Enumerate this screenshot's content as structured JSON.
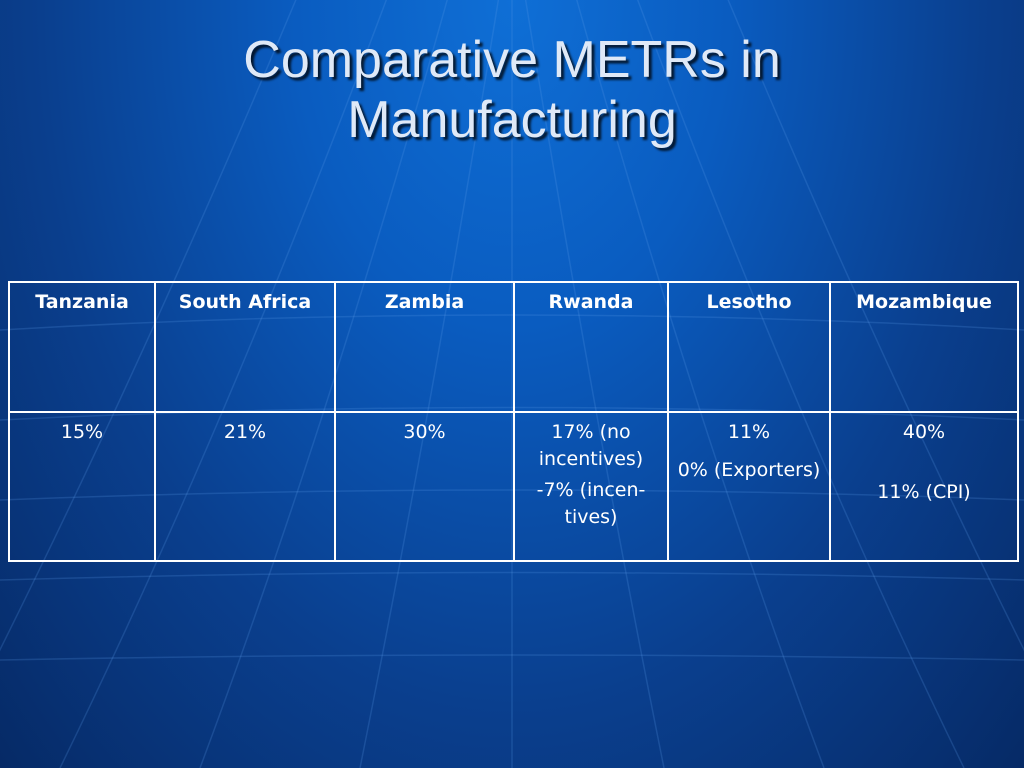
{
  "slide": {
    "title_lines": [
      "Comparative METRs in",
      "Manufacturing"
    ]
  },
  "table": {
    "headers": [
      "Tanzania",
      "South Africa",
      "Zambia",
      "Rwanda",
      "Lesotho",
      "Mozambique"
    ],
    "row": {
      "tanzania": [
        "15%"
      ],
      "south_africa": [
        "21%"
      ],
      "zambia": [
        "30%"
      ],
      "rwanda": [
        "17% (no incentives)",
        "-7% (incen-tives)"
      ],
      "lesotho": [
        "11%",
        "0% (Exporters)"
      ],
      "mozambique": [
        "40%",
        "11% (CPI)"
      ]
    }
  },
  "colors": {
    "background_top": "#0f6fd6",
    "background_bottom": "#062a66",
    "title_text": "#dfe9f7",
    "table_border": "#ffffff"
  }
}
